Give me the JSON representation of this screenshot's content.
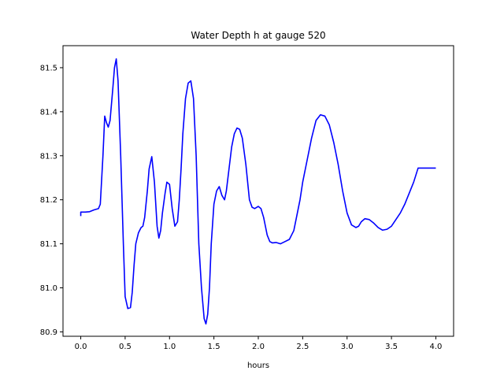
{
  "chart_data": {
    "type": "line",
    "title": "Water Depth h at gauge 520",
    "xlabel": "hours",
    "ylabel": "",
    "xlim": [
      -0.2,
      4.2
    ],
    "ylim": [
      80.89,
      81.55
    ],
    "xticks": [
      0.0,
      0.5,
      1.0,
      1.5,
      2.0,
      2.5,
      3.0,
      3.5,
      4.0
    ],
    "xtick_labels": [
      "0.0",
      "0.5",
      "1.0",
      "1.5",
      "2.0",
      "2.5",
      "3.0",
      "3.5",
      "4.0"
    ],
    "yticks": [
      80.9,
      81.0,
      81.1,
      81.2,
      81.3,
      81.4,
      81.5
    ],
    "ytick_labels": [
      "80.9",
      "81.0",
      "81.1",
      "81.2",
      "81.3",
      "81.4",
      "81.5"
    ],
    "grid": false,
    "legend": "none",
    "line_color": "#0000ff",
    "series": [
      {
        "x": [
          0.0,
          0.0,
          0.05,
          0.1,
          0.15,
          0.2,
          0.22,
          0.25,
          0.27,
          0.29,
          0.31,
          0.33,
          0.36,
          0.38,
          0.4,
          0.42,
          0.45,
          0.48,
          0.5,
          0.53,
          0.56,
          0.58,
          0.6,
          0.62,
          0.65,
          0.68,
          0.7,
          0.72,
          0.75,
          0.77,
          0.8,
          0.83,
          0.86,
          0.88,
          0.9,
          0.92,
          0.95,
          0.97,
          1.0,
          1.03,
          1.06,
          1.09,
          1.11,
          1.13,
          1.15,
          1.18,
          1.21,
          1.24,
          1.27,
          1.3,
          1.33,
          1.36,
          1.39,
          1.41,
          1.43,
          1.45,
          1.47,
          1.5,
          1.53,
          1.56,
          1.59,
          1.62,
          1.64,
          1.67,
          1.7,
          1.73,
          1.76,
          1.79,
          1.82,
          1.84,
          1.86,
          1.88,
          1.9,
          1.93,
          1.96,
          2.0,
          2.03,
          2.06,
          2.08,
          2.1,
          2.13,
          2.16,
          2.2,
          2.25,
          2.3,
          2.35,
          2.4,
          2.43,
          2.47,
          2.5,
          2.55,
          2.6,
          2.65,
          2.7,
          2.75,
          2.8,
          2.85,
          2.9,
          2.95,
          3.0,
          3.05,
          3.1,
          3.13,
          3.16,
          3.2,
          3.25,
          3.3,
          3.35,
          3.4,
          3.45,
          3.5,
          3.55,
          3.6,
          3.65,
          3.7,
          3.75,
          3.8,
          3.85,
          3.9,
          3.95,
          4.0
        ],
        "values": [
          81.163,
          81.172,
          81.172,
          81.173,
          81.177,
          81.18,
          81.19,
          81.3,
          81.39,
          81.375,
          81.365,
          81.38,
          81.45,
          81.5,
          81.52,
          81.47,
          81.3,
          81.1,
          80.98,
          80.953,
          80.955,
          80.99,
          81.05,
          81.1,
          81.125,
          81.137,
          81.14,
          81.16,
          81.22,
          81.27,
          81.298,
          81.24,
          81.14,
          81.113,
          81.13,
          81.17,
          81.215,
          81.24,
          81.235,
          81.18,
          81.14,
          81.15,
          81.2,
          81.27,
          81.35,
          81.43,
          81.465,
          81.47,
          81.43,
          81.3,
          81.1,
          81.0,
          80.93,
          80.918,
          80.94,
          81.0,
          81.1,
          81.19,
          81.22,
          81.23,
          81.21,
          81.2,
          81.22,
          81.27,
          81.32,
          81.35,
          81.363,
          81.36,
          81.34,
          81.31,
          81.28,
          81.24,
          81.2,
          81.183,
          81.18,
          81.185,
          81.18,
          81.16,
          81.14,
          81.12,
          81.105,
          81.102,
          81.103,
          81.1,
          81.105,
          81.11,
          81.13,
          81.16,
          81.2,
          81.24,
          81.29,
          81.34,
          81.38,
          81.393,
          81.39,
          81.37,
          81.33,
          81.28,
          81.22,
          81.17,
          81.143,
          81.137,
          81.14,
          81.15,
          81.157,
          81.155,
          81.147,
          81.137,
          81.131,
          81.133,
          81.14,
          81.155,
          81.17,
          81.19,
          81.215,
          81.24,
          81.272,
          81.272,
          81.272,
          81.272,
          81.272
        ]
      }
    ]
  }
}
